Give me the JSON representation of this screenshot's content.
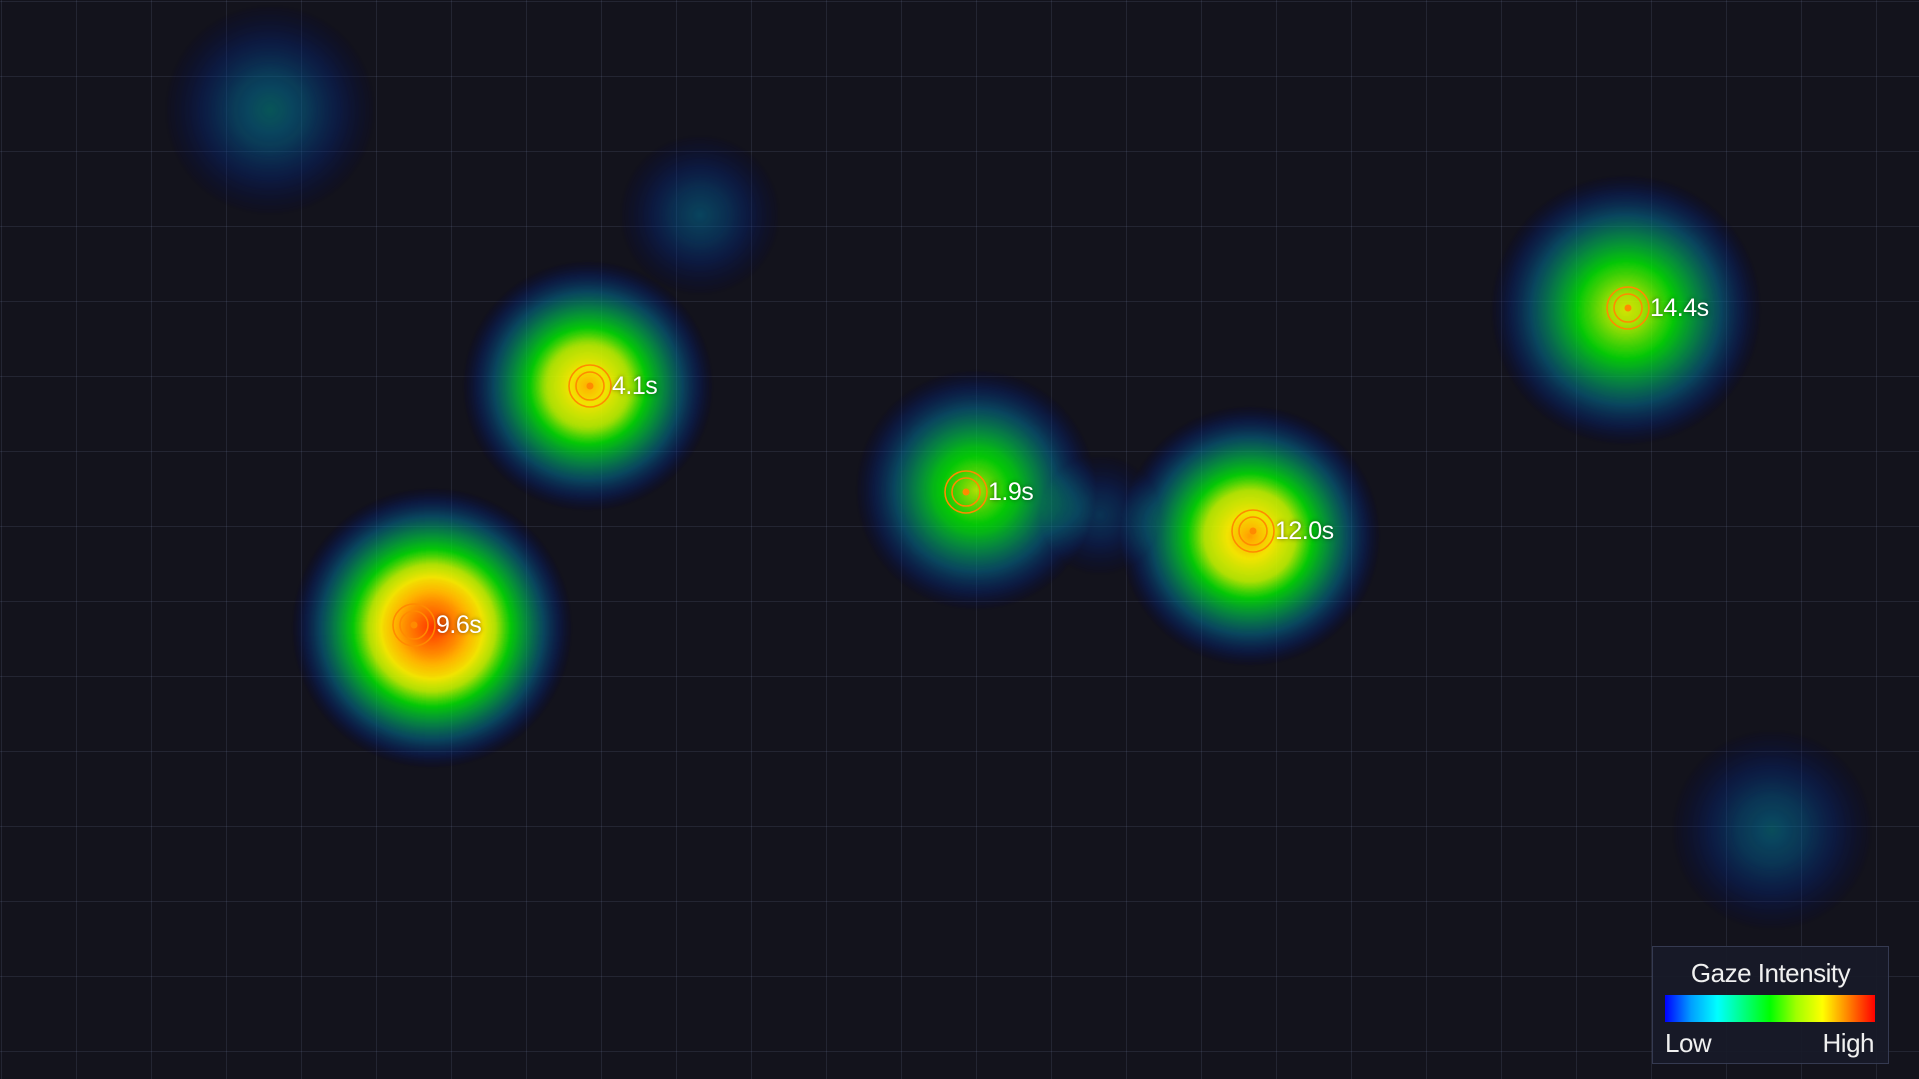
{
  "legend": {
    "title": "Gaze Intensity",
    "low_label": "Low",
    "high_label": "High",
    "gradient_colors": [
      "#0000ff",
      "#00a0ff",
      "#00ffff",
      "#00ff80",
      "#00ff00",
      "#a0ff00",
      "#ffff00",
      "#ff8000",
      "#ff0000"
    ]
  },
  "fixations": [
    {
      "duration_label": "4.1s",
      "intensity": 0.78
    },
    {
      "duration_label": "9.6s",
      "intensity": 0.95
    },
    {
      "duration_label": "1.9s",
      "intensity": 0.6
    },
    {
      "duration_label": "12.0s",
      "intensity": 0.8
    },
    {
      "duration_label": "14.4s",
      "intensity": 0.65
    }
  ],
  "colors": {
    "background": "#13131c",
    "marker": "#ff7a00"
  }
}
